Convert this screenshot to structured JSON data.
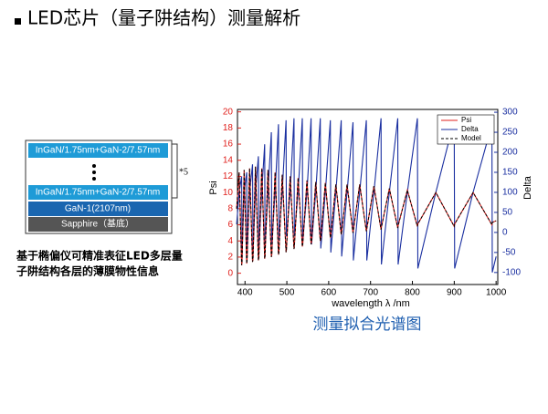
{
  "title": "LED芯片（量子阱结构）测量解析",
  "layers": [
    "InGaN/1.75nm+GaN-2/7.57nm",
    "InGaN/1.75nm+GaN-2/7.57nm",
    "GaN-1(2107nm)",
    "Sapphire（基底）"
  ],
  "repeat": "*5",
  "caption": [
    "基于椭偏仪可精准表征LED多层量",
    "子阱结构各层的薄膜物性信息"
  ],
  "chart_data": {
    "type": "line",
    "title": "测量拟合光谱图",
    "x_label": "wavelength λ /nm",
    "y_label": "Psi",
    "y2_label": "Delta",
    "x": [
      380,
      386,
      392,
      393,
      398,
      404,
      405,
      411,
      418,
      419,
      425,
      432,
      433,
      440,
      447,
      448,
      455,
      463,
      464,
      472,
      480,
      481,
      489,
      498,
      499,
      508,
      517,
      518,
      527,
      537,
      538,
      548,
      558,
      559,
      569,
      580,
      581,
      592,
      604,
      605,
      617,
      630,
      631,
      644,
      658,
      659,
      674,
      690,
      691,
      708,
      725,
      726,
      745,
      765,
      766,
      788,
      812,
      813,
      856,
      900,
      901,
      945,
      990,
      991,
      1000
    ],
    "series": [
      {
        "name": "Psi",
        "color": "#e0201c",
        "style": "solid",
        "values": [
          8,
          12.5,
          1.0,
          1.3,
          12.8,
          1.2,
          1.5,
          13.0,
          1.4,
          1.7,
          13.2,
          1.6,
          1.9,
          13.0,
          1.8,
          2.1,
          12.8,
          2.0,
          2.3,
          12.5,
          2.3,
          2.6,
          12.2,
          2.6,
          2.9,
          12.0,
          3.0,
          3.3,
          11.8,
          3.3,
          3.6,
          11.5,
          3.6,
          3.9,
          11.3,
          4.0,
          4.3,
          11.2,
          4.4,
          4.7,
          11.0,
          4.8,
          5.1,
          11.0,
          5.0,
          5.3,
          11.0,
          5.2,
          5.5,
          10.8,
          5.4,
          5.7,
          10.5,
          5.6,
          5.9,
          10.3,
          5.8,
          6.1,
          10.0,
          5.8,
          6.1,
          10.0,
          6.0,
          6.3,
          6.5
        ]
      },
      {
        "name": "Delta",
        "color": "#1a2fa0",
        "style": "solid",
        "axis": "y2",
        "values": [
          20,
          100,
          140,
          -60,
          100,
          150,
          -60,
          100,
          170,
          -55,
          100,
          190,
          -50,
          100,
          220,
          -40,
          100,
          250,
          -30,
          100,
          270,
          -20,
          100,
          280,
          -10,
          100,
          285,
          -10,
          100,
          285,
          -20,
          100,
          285,
          -30,
          100,
          285,
          -40,
          100,
          280,
          -50,
          100,
          280,
          -60,
          100,
          275,
          -70,
          100,
          280,
          -70,
          100,
          285,
          -80,
          100,
          285,
          -80,
          100,
          285,
          -90,
          100,
          280,
          -90,
          100,
          270,
          -100,
          -60
        ]
      },
      {
        "name": "Model",
        "color": "#000000",
        "style": "dashed",
        "values": [
          8,
          12.5,
          1.0,
          1.3,
          12.8,
          1.2,
          1.5,
          13.0,
          1.4,
          1.7,
          13.2,
          1.6,
          1.9,
          13.0,
          1.8,
          2.1,
          12.8,
          2.0,
          2.3,
          12.5,
          2.3,
          2.6,
          12.2,
          2.6,
          2.9,
          12.0,
          3.0,
          3.3,
          11.8,
          3.3,
          3.6,
          11.5,
          3.6,
          3.9,
          11.3,
          4.0,
          4.3,
          11.2,
          4.4,
          4.7,
          11.0,
          4.8,
          5.1,
          11.0,
          5.0,
          5.3,
          11.0,
          5.2,
          5.5,
          10.8,
          5.4,
          5.7,
          10.5,
          5.6,
          5.9,
          10.3,
          5.8,
          6.1,
          10.0,
          5.8,
          6.1,
          10.0,
          6.0,
          6.3,
          6.5
        ]
      }
    ],
    "xlim": [
      382,
      1004
    ],
    "xticks": [
      400,
      500,
      600,
      700,
      800,
      900,
      1000
    ],
    "ylim": [
      -1.4,
      20.3
    ],
    "yticks": [
      0,
      2,
      4,
      6,
      8,
      10,
      12,
      14,
      16,
      18,
      20
    ],
    "y2lim": [
      -130,
      307
    ],
    "y2ticks": [
      -100,
      -50,
      0,
      50,
      100,
      150,
      200,
      250,
      300
    ],
    "legend": "upper right",
    "grid": false
  }
}
